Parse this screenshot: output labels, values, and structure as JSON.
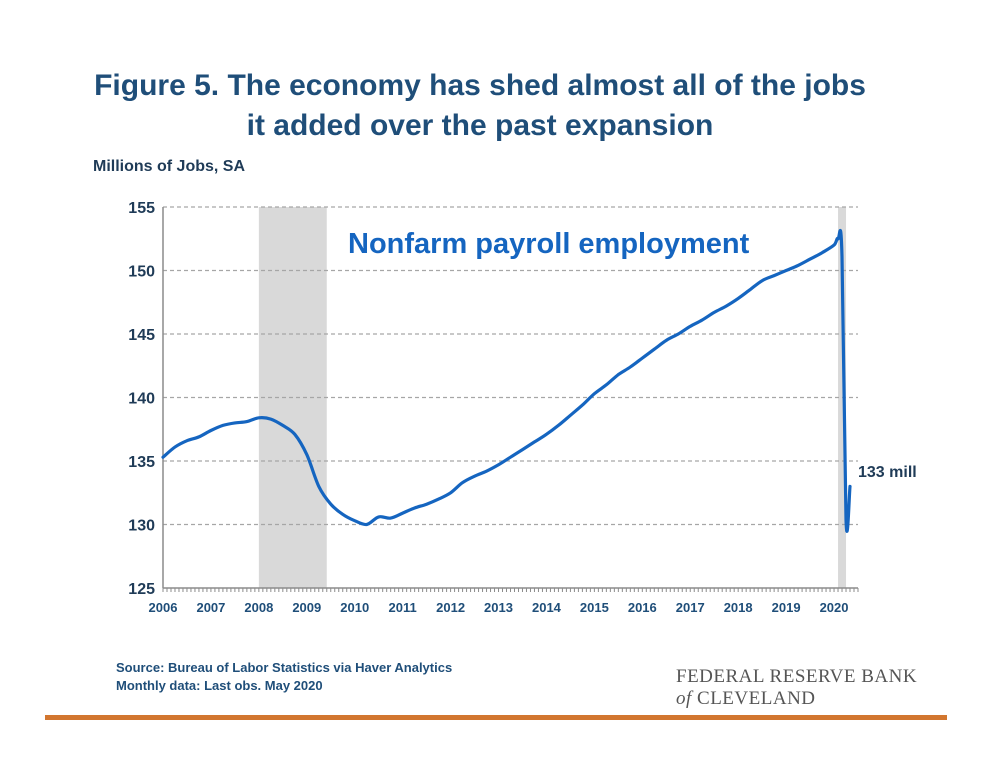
{
  "title": {
    "line1": "Figure 5. The economy has shed almost all of the jobs",
    "line2": "it added over the past expansion"
  },
  "ylabel": "Millions of Jobs, SA",
  "source": {
    "line1": "Source: Bureau of Labor Statistics via Haver Analytics",
    "line2": "Monthly data: Last obs. May 2020"
  },
  "logo": {
    "line1": "FEDERAL RESERVE BANK",
    "of": "of",
    "line2_rest": " CLEVELAND"
  },
  "colors": {
    "title": "#1f4e79",
    "series": "#1565c0",
    "recession": "#d9d9d9",
    "grid": "#a6a6a6",
    "footer_rule": "#d2762f"
  },
  "chart_data": {
    "type": "line",
    "title": "Nonfarm payroll employment",
    "ylabel": "Millions of Jobs, SA",
    "xlabel": "",
    "xlim": [
      "2006-01",
      "2020-07"
    ],
    "ylim": [
      125,
      155
    ],
    "yticks": [
      125,
      130,
      135,
      140,
      145,
      150,
      155
    ],
    "xticks": [
      "2006",
      "2007",
      "2008",
      "2009",
      "2010",
      "2011",
      "2012",
      "2013",
      "2014",
      "2015",
      "2016",
      "2017",
      "2018",
      "2019",
      "2020"
    ],
    "grid": "horizontal-dashed",
    "recessions": [
      {
        "start": "2008-01",
        "end": "2009-06"
      },
      {
        "start": "2020-02",
        "end": "2020-04"
      }
    ],
    "annotation": {
      "text": "133 mill",
      "at": "2020-05"
    },
    "series": [
      {
        "name": "Nonfarm payroll employment",
        "points": [
          [
            "2006-01",
            135.3
          ],
          [
            "2006-04",
            136.1
          ],
          [
            "2006-07",
            136.6
          ],
          [
            "2006-10",
            136.9
          ],
          [
            "2007-01",
            137.4
          ],
          [
            "2007-04",
            137.8
          ],
          [
            "2007-07",
            138.0
          ],
          [
            "2007-10",
            138.1
          ],
          [
            "2008-01",
            138.4
          ],
          [
            "2008-04",
            138.3
          ],
          [
            "2008-07",
            137.8
          ],
          [
            "2008-10",
            137.1
          ],
          [
            "2009-01",
            135.5
          ],
          [
            "2009-04",
            133.0
          ],
          [
            "2009-07",
            131.6
          ],
          [
            "2009-10",
            130.8
          ],
          [
            "2010-01",
            130.3
          ],
          [
            "2010-04",
            130.0
          ],
          [
            "2010-07",
            130.6
          ],
          [
            "2010-10",
            130.5
          ],
          [
            "2011-01",
            130.9
          ],
          [
            "2011-04",
            131.3
          ],
          [
            "2011-07",
            131.6
          ],
          [
            "2011-10",
            132.0
          ],
          [
            "2012-01",
            132.5
          ],
          [
            "2012-04",
            133.3
          ],
          [
            "2012-07",
            133.8
          ],
          [
            "2012-10",
            134.2
          ],
          [
            "2013-01",
            134.7
          ],
          [
            "2013-04",
            135.3
          ],
          [
            "2013-07",
            135.9
          ],
          [
            "2013-10",
            136.5
          ],
          [
            "2014-01",
            137.1
          ],
          [
            "2014-04",
            137.8
          ],
          [
            "2014-07",
            138.6
          ],
          [
            "2014-10",
            139.4
          ],
          [
            "2015-01",
            140.3
          ],
          [
            "2015-04",
            141.0
          ],
          [
            "2015-07",
            141.8
          ],
          [
            "2015-10",
            142.4
          ],
          [
            "2016-01",
            143.1
          ],
          [
            "2016-04",
            143.8
          ],
          [
            "2016-07",
            144.5
          ],
          [
            "2016-10",
            145.0
          ],
          [
            "2017-01",
            145.6
          ],
          [
            "2017-04",
            146.1
          ],
          [
            "2017-07",
            146.7
          ],
          [
            "2017-10",
            147.2
          ],
          [
            "2018-01",
            147.8
          ],
          [
            "2018-04",
            148.5
          ],
          [
            "2018-07",
            149.2
          ],
          [
            "2018-10",
            149.6
          ],
          [
            "2019-01",
            150.0
          ],
          [
            "2019-04",
            150.4
          ],
          [
            "2019-07",
            150.9
          ],
          [
            "2019-10",
            151.4
          ],
          [
            "2020-01",
            152.0
          ],
          [
            "2020-02",
            152.5
          ],
          [
            "2020-03",
            151.1
          ],
          [
            "2020-04",
            130.4
          ],
          [
            "2020-05",
            133.0
          ]
        ]
      }
    ]
  }
}
